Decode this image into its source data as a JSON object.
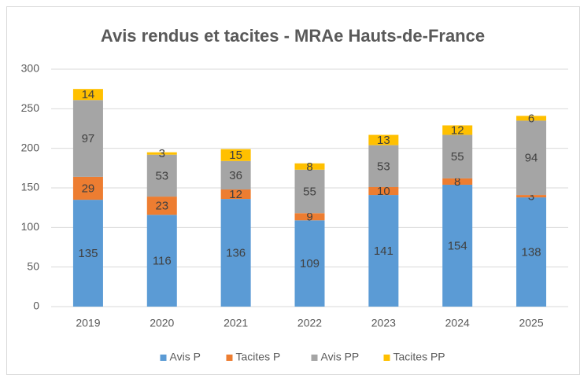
{
  "chart_data": {
    "type": "bar",
    "stacked": true,
    "title": "Avis rendus et tacites - MRAe Hauts-de-France",
    "categories": [
      "2019",
      "2020",
      "2021",
      "2022",
      "2023",
      "2024",
      "2025"
    ],
    "series": [
      {
        "name": "Avis P",
        "color": "#5b9bd5",
        "values": [
          135,
          116,
          136,
          109,
          141,
          154,
          138
        ]
      },
      {
        "name": "Tacites P",
        "color": "#ed7d31",
        "values": [
          29,
          23,
          12,
          9,
          10,
          8,
          3
        ]
      },
      {
        "name": "Avis PP",
        "color": "#a5a5a5",
        "values": [
          97,
          53,
          36,
          55,
          53,
          55,
          94
        ]
      },
      {
        "name": "Tacites PP",
        "color": "#ffc000",
        "values": [
          14,
          3,
          15,
          8,
          13,
          12,
          6
        ]
      }
    ],
    "ylim": [
      0,
      300
    ],
    "yticks": [
      0,
      50,
      100,
      150,
      200,
      250,
      300
    ],
    "grid": true,
    "legend": "bottom"
  }
}
